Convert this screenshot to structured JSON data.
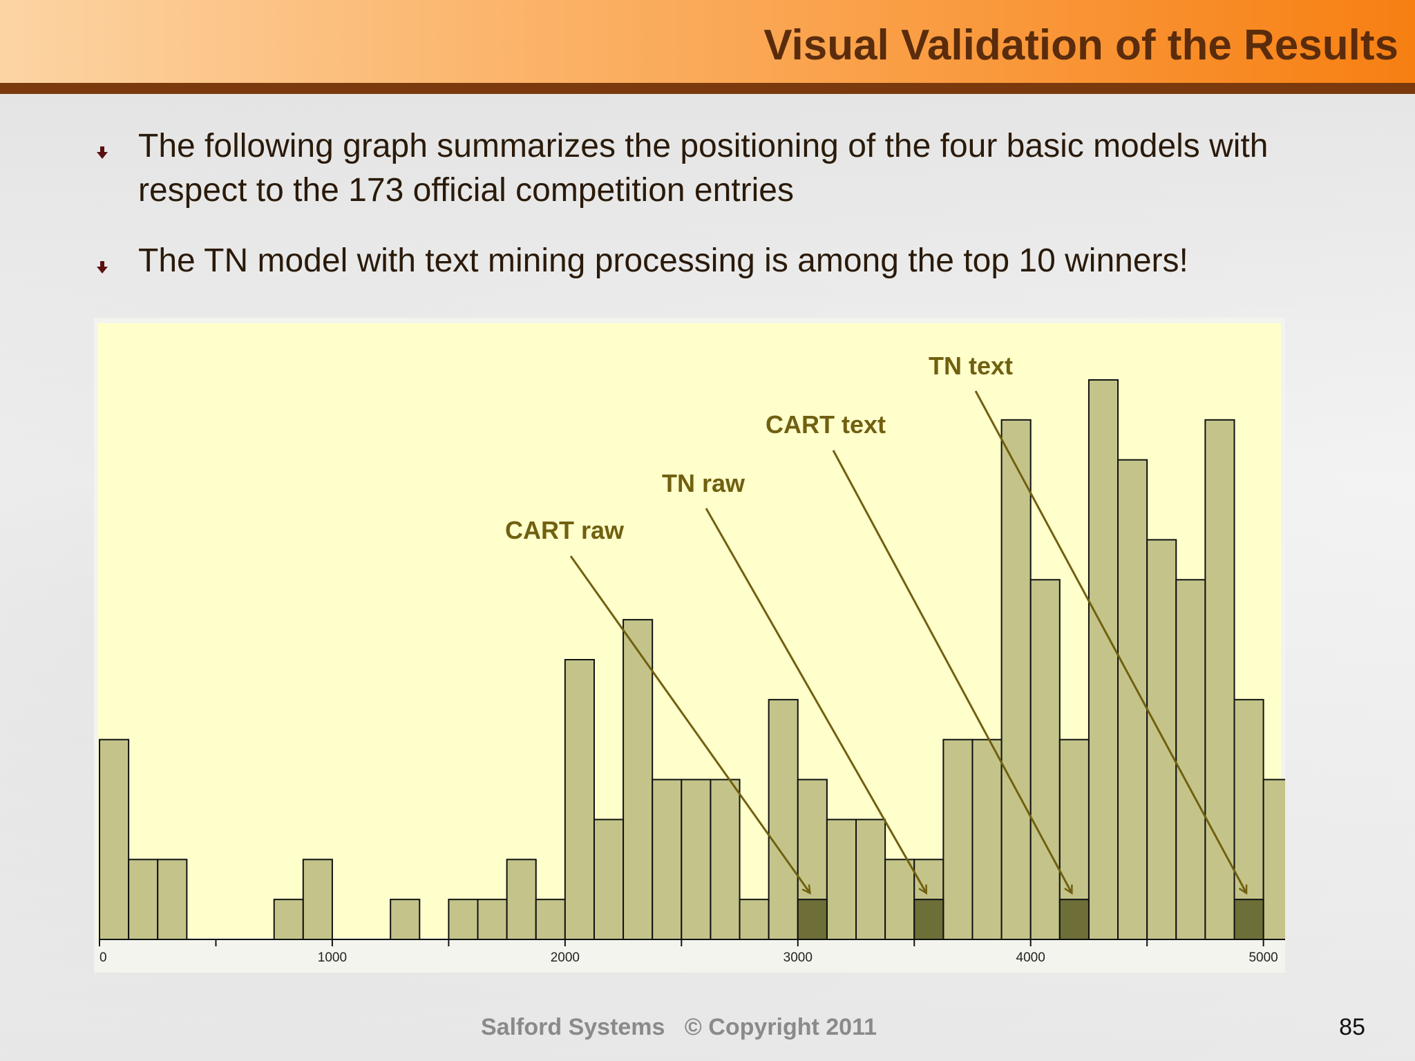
{
  "slide": {
    "title": "Visual Validation of the Results",
    "bullets": [
      "The following graph summarizes the positioning of the four basic models with respect to the 173 official competition entries",
      "The  TN model with text mining processing is among the top 10 winners!"
    ],
    "footer": "Salford Systems   © Copyright 2011",
    "page_number": "85"
  },
  "colors": {
    "header_gradient_start": "#fcd4a4",
    "header_gradient_end": "#f77f12",
    "header_rule": "#7a3a0d",
    "title": "#5a2c0c",
    "plot_background": "#ffffcc",
    "bar_fill": "#c4c48a",
    "highlight_fill": "#6e6e38",
    "annotation": "#706010"
  },
  "chart_data": {
    "type": "bar",
    "title": "",
    "xlabel": "",
    "ylabel": "",
    "bin_width": 125,
    "xlim": [
      0,
      5250
    ],
    "ylim": [
      0,
      15
    ],
    "x_ticks": [
      0,
      1000,
      2000,
      3000,
      4000,
      5000
    ],
    "bins": [
      {
        "x": 0,
        "value": 5
      },
      {
        "x": 125,
        "value": 2
      },
      {
        "x": 250,
        "value": 2
      },
      {
        "x": 375,
        "value": 0
      },
      {
        "x": 500,
        "value": 0
      },
      {
        "x": 625,
        "value": 0
      },
      {
        "x": 750,
        "value": 1
      },
      {
        "x": 875,
        "value": 2
      },
      {
        "x": 1000,
        "value": 0
      },
      {
        "x": 1125,
        "value": 0
      },
      {
        "x": 1250,
        "value": 1
      },
      {
        "x": 1375,
        "value": 0
      },
      {
        "x": 1500,
        "value": 1
      },
      {
        "x": 1625,
        "value": 1
      },
      {
        "x": 1750,
        "value": 2
      },
      {
        "x": 1875,
        "value": 1
      },
      {
        "x": 2000,
        "value": 7
      },
      {
        "x": 2125,
        "value": 3
      },
      {
        "x": 2250,
        "value": 8
      },
      {
        "x": 2375,
        "value": 4
      },
      {
        "x": 2500,
        "value": 4
      },
      {
        "x": 2625,
        "value": 4
      },
      {
        "x": 2750,
        "value": 1
      },
      {
        "x": 2875,
        "value": 6
      },
      {
        "x": 3000,
        "value": 4
      },
      {
        "x": 3125,
        "value": 3
      },
      {
        "x": 3250,
        "value": 3
      },
      {
        "x": 3375,
        "value": 2
      },
      {
        "x": 3500,
        "value": 2
      },
      {
        "x": 3625,
        "value": 5
      },
      {
        "x": 3750,
        "value": 5
      },
      {
        "x": 3875,
        "value": 13
      },
      {
        "x": 4000,
        "value": 9
      },
      {
        "x": 4125,
        "value": 5
      },
      {
        "x": 4250,
        "value": 14
      },
      {
        "x": 4375,
        "value": 12
      },
      {
        "x": 4500,
        "value": 10
      },
      {
        "x": 4625,
        "value": 9
      },
      {
        "x": 4750,
        "value": 13
      },
      {
        "x": 4875,
        "value": 6
      },
      {
        "x": 5000,
        "value": 4
      }
    ],
    "highlighted_entries": [
      {
        "name": "CART raw",
        "x": 3000,
        "value": 1
      },
      {
        "name": "TN raw",
        "x": 3500,
        "value": 1
      },
      {
        "name": "CART text",
        "x": 4125,
        "value": 1
      },
      {
        "name": "TN text",
        "x": 4875,
        "value": 1
      }
    ],
    "annotations": [
      "CART raw",
      "TN raw",
      "CART text",
      "TN text"
    ],
    "grid": false,
    "legend": "none"
  }
}
